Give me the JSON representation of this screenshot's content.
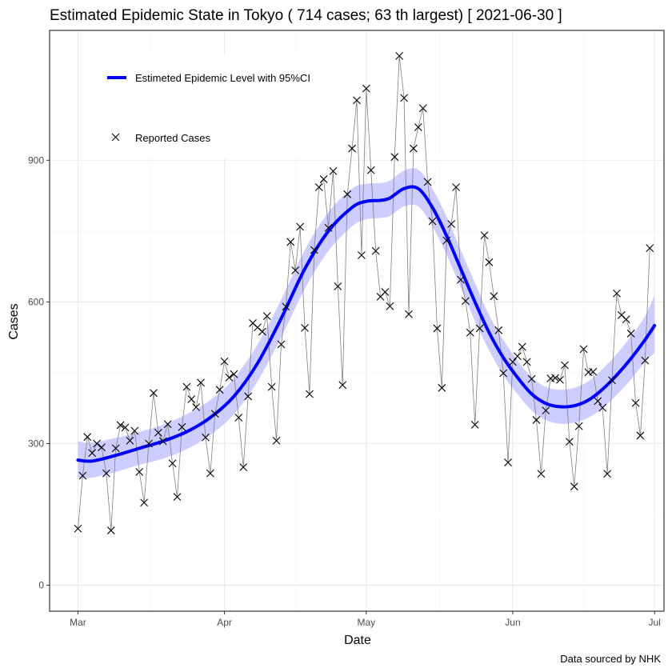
{
  "chart_data": {
    "type": "line",
    "title": "Estimated Epidemic State in Tokyo  ( 714 cases; 63 th largest) [ 2021-06-30 ]",
    "xlabel": "Date",
    "ylabel": "Cases",
    "caption": "Data sourced by NHK",
    "x_ticks": [
      {
        "label": "Mar",
        "day": 0
      },
      {
        "label": "Apr",
        "day": 31
      },
      {
        "label": "May",
        "day": 61
      },
      {
        "label": "Jun",
        "day": 92
      },
      {
        "label": "Jul",
        "day": 122
      }
    ],
    "y_ticks": [
      0,
      300,
      600,
      900
    ],
    "xlim": [
      -6,
      124
    ],
    "ylim": [
      -55,
      1175
    ],
    "grid": true,
    "legend_position": "top-left",
    "series": [
      {
        "name": "Estimeted Epidemic Level with 95%CI",
        "kind": "smooth_with_band",
        "color": "#0000ff",
        "band_color": "#c8c8ff",
        "knots": [
          [
            0,
            265,
            228,
            305
          ],
          [
            3,
            263,
            228,
            302
          ],
          [
            8,
            275,
            240,
            312
          ],
          [
            13,
            290,
            255,
            325
          ],
          [
            18,
            305,
            268,
            340
          ],
          [
            23,
            325,
            288,
            362
          ],
          [
            28,
            355,
            318,
            392
          ],
          [
            33,
            400,
            362,
            438
          ],
          [
            38,
            470,
            432,
            510
          ],
          [
            43,
            565,
            525,
            605
          ],
          [
            48,
            670,
            628,
            710
          ],
          [
            53,
            750,
            708,
            790
          ],
          [
            58,
            800,
            760,
            840
          ],
          [
            61,
            813,
            775,
            850
          ],
          [
            64,
            815,
            778,
            852
          ],
          [
            66,
            820,
            782,
            857
          ],
          [
            69,
            840,
            802,
            878
          ],
          [
            72,
            840,
            802,
            880
          ],
          [
            75,
            800,
            760,
            840
          ],
          [
            78,
            740,
            700,
            780
          ],
          [
            81,
            670,
            630,
            710
          ],
          [
            84,
            600,
            560,
            640
          ],
          [
            87,
            535,
            497,
            572
          ],
          [
            90,
            482,
            445,
            520
          ],
          [
            93,
            440,
            405,
            476
          ],
          [
            96,
            405,
            370,
            440
          ],
          [
            99,
            385,
            350,
            420
          ],
          [
            102,
            378,
            342,
            414
          ],
          [
            105,
            380,
            344,
            418
          ],
          [
            108,
            392,
            355,
            432
          ],
          [
            111,
            415,
            375,
            458
          ],
          [
            114,
            445,
            403,
            490
          ],
          [
            117,
            480,
            436,
            527
          ],
          [
            120,
            520,
            473,
            570
          ],
          [
            122,
            550,
            492,
            615
          ]
        ]
      },
      {
        "name": "Reported Cases",
        "kind": "points_with_line",
        "color": "#000000",
        "line_color": "#7f7f7f",
        "points": [
          [
            0,
            120
          ],
          [
            1,
            232
          ],
          [
            2,
            314
          ],
          [
            3,
            280
          ],
          [
            4,
            300
          ],
          [
            5,
            292
          ],
          [
            6,
            237
          ],
          [
            7,
            116
          ],
          [
            8,
            290
          ],
          [
            9,
            339
          ],
          [
            10,
            334
          ],
          [
            11,
            306
          ],
          [
            12,
            327
          ],
          [
            13,
            240
          ],
          [
            14,
            175
          ],
          [
            15,
            300
          ],
          [
            16,
            407
          ],
          [
            17,
            323
          ],
          [
            18,
            305
          ],
          [
            19,
            341
          ],
          [
            20,
            258
          ],
          [
            21,
            187
          ],
          [
            22,
            335
          ],
          [
            23,
            420
          ],
          [
            24,
            394
          ],
          [
            25,
            377
          ],
          [
            26,
            429
          ],
          [
            27,
            313
          ],
          [
            28,
            237
          ],
          [
            29,
            363
          ],
          [
            30,
            414
          ],
          [
            31,
            474
          ],
          [
            32,
            440
          ],
          [
            33,
            447
          ],
          [
            34,
            355
          ],
          [
            35,
            250
          ],
          [
            36,
            400
          ],
          [
            37,
            555
          ],
          [
            38,
            546
          ],
          [
            39,
            537
          ],
          [
            40,
            570
          ],
          [
            41,
            420
          ],
          [
            42,
            306
          ],
          [
            43,
            510
          ],
          [
            44,
            590
          ],
          [
            45,
            727
          ],
          [
            46,
            667
          ],
          [
            47,
            759
          ],
          [
            48,
            545
          ],
          [
            49,
            405
          ],
          [
            50,
            710
          ],
          [
            51,
            843
          ],
          [
            52,
            860
          ],
          [
            53,
            757
          ],
          [
            54,
            877
          ],
          [
            55,
            633
          ],
          [
            56,
            424
          ],
          [
            57,
            828
          ],
          [
            58,
            925
          ],
          [
            59,
            1027
          ],
          [
            60,
            699
          ],
          [
            61,
            1052
          ],
          [
            62,
            879
          ],
          [
            63,
            708
          ],
          [
            64,
            611
          ],
          [
            65,
            621
          ],
          [
            66,
            591
          ],
          [
            67,
            907
          ],
          [
            68,
            1121
          ],
          [
            69,
            1032
          ],
          [
            70,
            574
          ],
          [
            71,
            925
          ],
          [
            72,
            970
          ],
          [
            73,
            1010
          ],
          [
            74,
            854
          ],
          [
            75,
            771
          ],
          [
            76,
            544
          ],
          [
            77,
            418
          ],
          [
            78,
            730
          ],
          [
            79,
            765
          ],
          [
            80,
            843
          ],
          [
            81,
            647
          ],
          [
            82,
            602
          ],
          [
            83,
            535
          ],
          [
            84,
            340
          ],
          [
            85,
            544
          ],
          [
            86,
            741
          ],
          [
            87,
            684
          ],
          [
            88,
            612
          ],
          [
            89,
            540
          ],
          [
            90,
            449
          ],
          [
            91,
            260
          ],
          [
            92,
            473
          ],
          [
            93,
            485
          ],
          [
            94,
            505
          ],
          [
            95,
            473
          ],
          [
            96,
            437
          ],
          [
            97,
            350
          ],
          [
            98,
            236
          ],
          [
            99,
            370
          ],
          [
            100,
            438
          ],
          [
            101,
            439
          ],
          [
            102,
            435
          ],
          [
            103,
            466
          ],
          [
            104,
            304
          ],
          [
            105,
            209
          ],
          [
            106,
            337
          ],
          [
            107,
            500
          ],
          [
            108,
            451
          ],
          [
            109,
            452
          ],
          [
            110,
            390
          ],
          [
            111,
            376
          ],
          [
            112,
            236
          ],
          [
            113,
            434
          ],
          [
            114,
            618
          ],
          [
            115,
            572
          ],
          [
            116,
            563
          ],
          [
            117,
            533
          ],
          [
            118,
            386
          ],
          [
            119,
            317
          ],
          [
            120,
            476
          ],
          [
            121,
            714
          ]
        ]
      }
    ]
  }
}
